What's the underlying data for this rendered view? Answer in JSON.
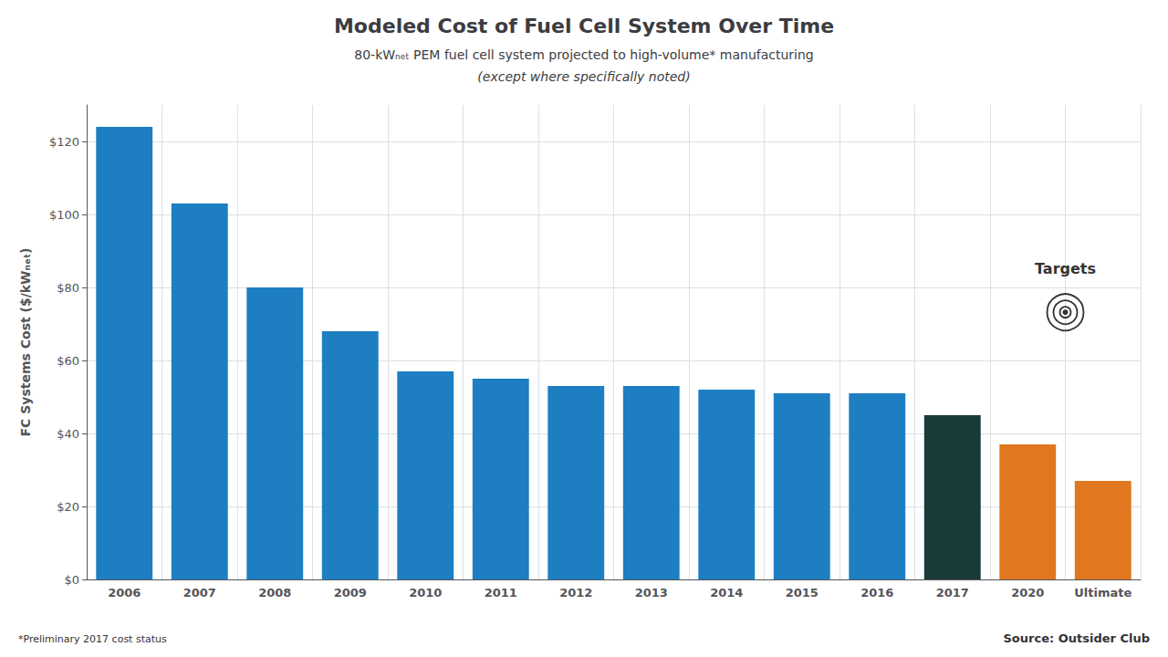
{
  "chart_data": {
    "type": "bar",
    "title": "Modeled Cost of Fuel Cell System Over Time",
    "subtitle": [
      "80-kWₙₑₜ PEM fuel cell system projected to high-volume* manufacturing",
      "(except where specifically noted)"
    ],
    "ylabel": "FC Systems Cost ($/kWₙₑₜ)",
    "categories": [
      "2006",
      "2007",
      "2008",
      "2009",
      "2010",
      "2011",
      "2012",
      "2013",
      "2014",
      "2015",
      "2016",
      "2017",
      "2020",
      "Ultimate"
    ],
    "values": [
      124,
      103,
      80,
      68,
      57,
      55,
      53,
      53,
      52,
      51,
      51,
      45,
      37,
      27
    ],
    "colors": [
      "#1d7ec2",
      "#1d7ec2",
      "#1d7ec2",
      "#1d7ec2",
      "#1d7ec2",
      "#1d7ec2",
      "#1d7ec2",
      "#1d7ec2",
      "#1d7ec2",
      "#1d7ec2",
      "#1d7ec2",
      "#1a3a3a",
      "#e07820",
      "#e07820"
    ],
    "ylim": [
      0,
      130
    ],
    "yticks": [
      {
        "value": 0,
        "label": "$0"
      },
      {
        "value": 20,
        "label": "$20"
      },
      {
        "value": 40,
        "label": "$40"
      },
      {
        "value": 60,
        "label": "$60"
      },
      {
        "value": 80,
        "label": "$80"
      },
      {
        "value": 100,
        "label": "$100"
      },
      {
        "value": 120,
        "label": "$120"
      }
    ],
    "grid": true,
    "annotations": [
      "Targets"
    ],
    "note": "*Preliminary 2017 cost status",
    "source": "Source: Outsider Club"
  }
}
